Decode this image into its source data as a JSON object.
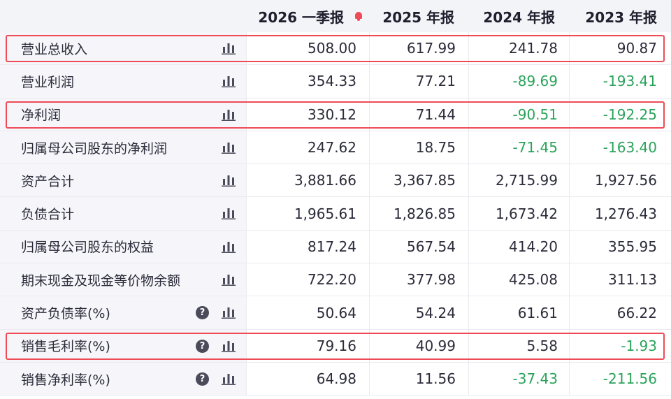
{
  "header": {
    "columns": [
      "2026 一季报",
      "2025 年报",
      "2024 年报",
      "2023 年报"
    ]
  },
  "rows": [
    {
      "label": "营业总收入",
      "values": [
        "508.00",
        "617.99",
        "241.78",
        "90.87"
      ],
      "help": false,
      "highlight": true
    },
    {
      "label": "营业利润",
      "values": [
        "354.33",
        "77.21",
        "-89.69",
        "-193.41"
      ],
      "help": false,
      "highlight": false
    },
    {
      "label": "净利润",
      "values": [
        "330.12",
        "71.44",
        "-90.51",
        "-192.25"
      ],
      "help": false,
      "highlight": true
    },
    {
      "label": "归属母公司股东的净利润",
      "values": [
        "247.62",
        "18.75",
        "-71.45",
        "-163.40"
      ],
      "help": false,
      "highlight": false
    },
    {
      "label": "资产合计",
      "values": [
        "3,881.66",
        "3,367.85",
        "2,715.99",
        "1,927.56"
      ],
      "help": false,
      "highlight": false
    },
    {
      "label": "负债合计",
      "values": [
        "1,965.61",
        "1,826.85",
        "1,673.42",
        "1,276.43"
      ],
      "help": false,
      "highlight": false
    },
    {
      "label": "归属母公司股东的权益",
      "values": [
        "817.24",
        "567.54",
        "414.20",
        "355.95"
      ],
      "help": false,
      "highlight": false
    },
    {
      "label": "期末现金及现金等价物余额",
      "values": [
        "722.20",
        "377.98",
        "425.08",
        "311.13"
      ],
      "help": false,
      "highlight": false
    },
    {
      "label": "资产负债率(%)",
      "values": [
        "50.64",
        "54.24",
        "61.61",
        "66.22"
      ],
      "help": true,
      "highlight": false
    },
    {
      "label": "销售毛利率(%)",
      "values": [
        "79.16",
        "40.99",
        "5.58",
        "-1.93"
      ],
      "help": true,
      "highlight": true
    },
    {
      "label": "销售净利率(%)",
      "values": [
        "64.98",
        "11.56",
        "-37.43",
        "-211.56"
      ],
      "help": true,
      "highlight": false
    }
  ],
  "help_glyph": "?",
  "icons": {
    "chart": "bar-chart-icon",
    "help": "question-icon",
    "alert": "bell-icon"
  },
  "colors": {
    "negative": "#2aa35a",
    "highlight": "#ee4b57",
    "label_bg": "#f6f6fa"
  }
}
